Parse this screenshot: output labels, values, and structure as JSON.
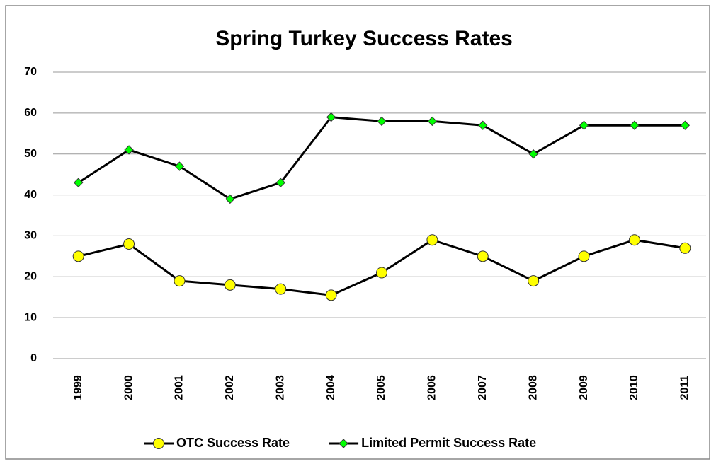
{
  "chart_data": {
    "type": "line",
    "title": "Spring Turkey Success Rates",
    "categories": [
      "1999",
      "2000",
      "2001",
      "2002",
      "2003",
      "2004",
      "2005",
      "2006",
      "2007",
      "2008",
      "2009",
      "2010",
      "2011"
    ],
    "series": [
      {
        "name": "OTC Success Rate",
        "color": "#ffff00",
        "marker": "circle",
        "values": [
          25,
          28,
          19,
          18,
          17,
          15.5,
          21,
          29,
          25,
          19,
          25,
          29,
          27
        ]
      },
      {
        "name": "Limited Permit Success Rate",
        "color": "#00ff00",
        "marker": "diamond",
        "values": [
          43,
          51,
          47,
          39,
          43,
          59,
          58,
          58,
          57,
          50,
          57,
          57,
          57
        ]
      }
    ],
    "ylim": [
      0,
      70
    ],
    "yticks": [
      0,
      10,
      20,
      30,
      40,
      50,
      60,
      70
    ],
    "grid": true,
    "legend": "bottom"
  }
}
